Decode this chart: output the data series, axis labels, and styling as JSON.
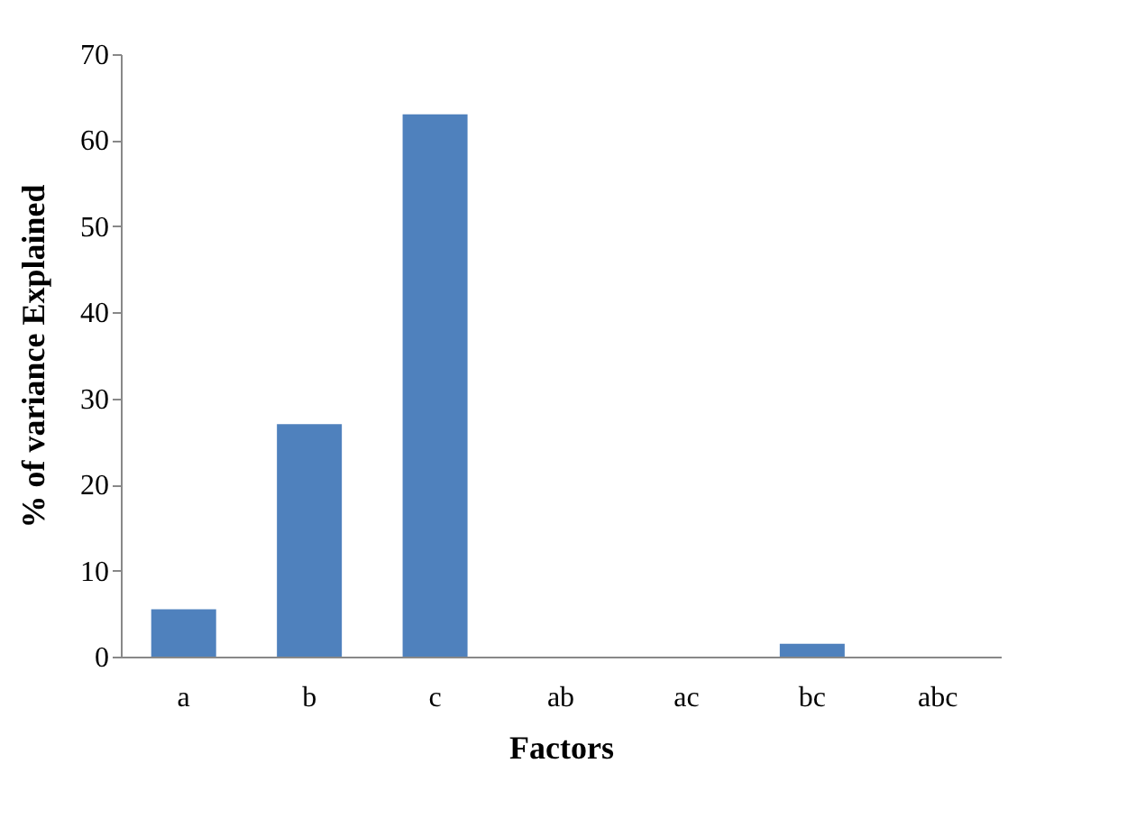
{
  "chart_data": {
    "type": "bar",
    "xlabel": "Factors",
    "ylabel": "% of variance Explained",
    "categories": [
      "a",
      "b",
      "c",
      "ab",
      "ac",
      "bc",
      "abc"
    ],
    "values": [
      5.5,
      27,
      63,
      0,
      0,
      1.5,
      0
    ],
    "color": "#4f81bd",
    "ylim": [
      0,
      70
    ],
    "yticks": [
      0,
      10,
      20,
      30,
      40,
      50,
      60,
      70
    ],
    "grid": false
  }
}
